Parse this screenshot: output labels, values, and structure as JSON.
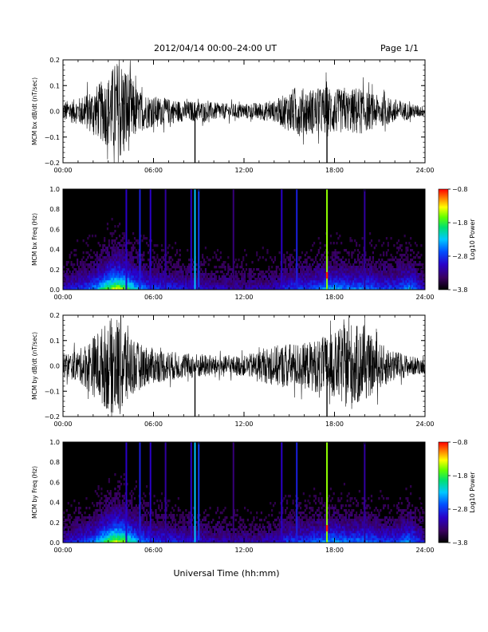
{
  "header": {
    "title": "2012/04/14  00:00–24:00 UT",
    "page_label": "Page 1/1"
  },
  "xlabel": "Universal Time (hh:mm)",
  "chart_data": [
    {
      "type": "line",
      "ylabel": "MCM bx dB/dt (nT/sec)",
      "xlim": [
        0,
        24
      ],
      "ylim": [
        -0.2,
        0.2
      ],
      "x_ticks": [
        "00:00",
        "06:00",
        "12:00",
        "18:00",
        "24:00"
      ],
      "y_ticks": [
        "0.2",
        "0.1",
        "0.0",
        "−0.1",
        "−0.2"
      ],
      "envelope_hours": [
        0,
        1,
        2,
        3,
        3.5,
        4,
        4.5,
        5,
        6,
        7,
        8,
        9,
        10,
        11,
        12,
        13,
        14,
        15,
        15.5,
        16,
        17,
        17.5,
        18,
        19,
        19.5,
        20,
        21,
        22,
        23,
        24
      ],
      "envelope_amplitude": [
        0.04,
        0.05,
        0.09,
        0.14,
        0.2,
        0.2,
        0.14,
        0.08,
        0.06,
        0.05,
        0.04,
        0.04,
        0.035,
        0.03,
        0.03,
        0.035,
        0.04,
        0.08,
        0.1,
        0.09,
        0.09,
        0.1,
        0.09,
        0.08,
        0.1,
        0.08,
        0.06,
        0.05,
        0.03,
        0.02
      ],
      "spikes": [
        {
          "x": 8.75,
          "y": -0.2
        },
        {
          "x": 17.5,
          "y": -0.2
        }
      ]
    },
    {
      "type": "heatmap",
      "ylabel": "MCM bx Freq (Hz)",
      "xlim": [
        0,
        24
      ],
      "ylim": [
        0,
        1
      ],
      "x_ticks": [
        "00:00",
        "06:00",
        "12:00",
        "18:00",
        "24:00"
      ],
      "y_ticks": [
        "1.0",
        "0.8",
        "0.6",
        "0.4",
        "0.2",
        "0.0"
      ],
      "colorbar": {
        "label": "Log10 Power",
        "ticks": [
          "−0.8",
          "−1.8",
          "−2.8",
          "−3.8"
        ],
        "range": [
          -3.8,
          -0.8
        ]
      },
      "lines_hours": [
        4.2,
        5.1,
        5.8,
        6.8,
        8.5,
        8.75,
        9.0,
        11.3,
        14.5,
        15.5,
        17.5,
        20.0
      ],
      "line_strength": [
        0.25,
        0.3,
        0.25,
        0.2,
        0.25,
        0.5,
        0.35,
        0.15,
        0.25,
        0.3,
        0.75,
        0.2
      ]
    },
    {
      "type": "line",
      "ylabel": "MCM by dB/dt (nT/sec)",
      "xlim": [
        0,
        24
      ],
      "ylim": [
        -0.2,
        0.2
      ],
      "x_ticks": [
        "00:00",
        "06:00",
        "12:00",
        "18:00",
        "24:00"
      ],
      "y_ticks": [
        "0.2",
        "0.1",
        "0.0",
        "−0.1",
        "−0.2"
      ],
      "envelope_hours": [
        0,
        1,
        2,
        3,
        3.5,
        4,
        4.5,
        5,
        6,
        7,
        8,
        9,
        10,
        11,
        12,
        13,
        14,
        15,
        16,
        17,
        17.5,
        18,
        19,
        20,
        21,
        22,
        23,
        24
      ],
      "envelope_amplitude": [
        0.05,
        0.06,
        0.12,
        0.18,
        0.2,
        0.2,
        0.13,
        0.09,
        0.07,
        0.06,
        0.05,
        0.05,
        0.04,
        0.04,
        0.04,
        0.06,
        0.08,
        0.09,
        0.09,
        0.11,
        0.12,
        0.13,
        0.18,
        0.14,
        0.09,
        0.06,
        0.04,
        0.03
      ],
      "spikes": [
        {
          "x": 8.75,
          "y": -0.2
        },
        {
          "x": 17.5,
          "y": -0.2
        }
      ]
    },
    {
      "type": "heatmap",
      "ylabel": "MCM by Freq (Hz)",
      "xlim": [
        0,
        24
      ],
      "ylim": [
        0,
        1
      ],
      "x_ticks": [
        "00:00",
        "06:00",
        "12:00",
        "18:00",
        "24:00"
      ],
      "y_ticks": [
        "1.0",
        "0.8",
        "0.6",
        "0.4",
        "0.2",
        "0.0"
      ],
      "colorbar": {
        "label": "Log10 Power",
        "ticks": [
          "−0.8",
          "−1.8",
          "−2.8",
          "−3.8"
        ],
        "range": [
          -3.8,
          -0.8
        ]
      },
      "lines_hours": [
        4.2,
        5.1,
        5.8,
        6.8,
        8.5,
        8.75,
        9.0,
        11.3,
        14.5,
        15.5,
        17.5,
        20.0
      ],
      "line_strength": [
        0.25,
        0.3,
        0.25,
        0.2,
        0.25,
        0.5,
        0.35,
        0.15,
        0.25,
        0.3,
        0.75,
        0.2
      ]
    }
  ]
}
